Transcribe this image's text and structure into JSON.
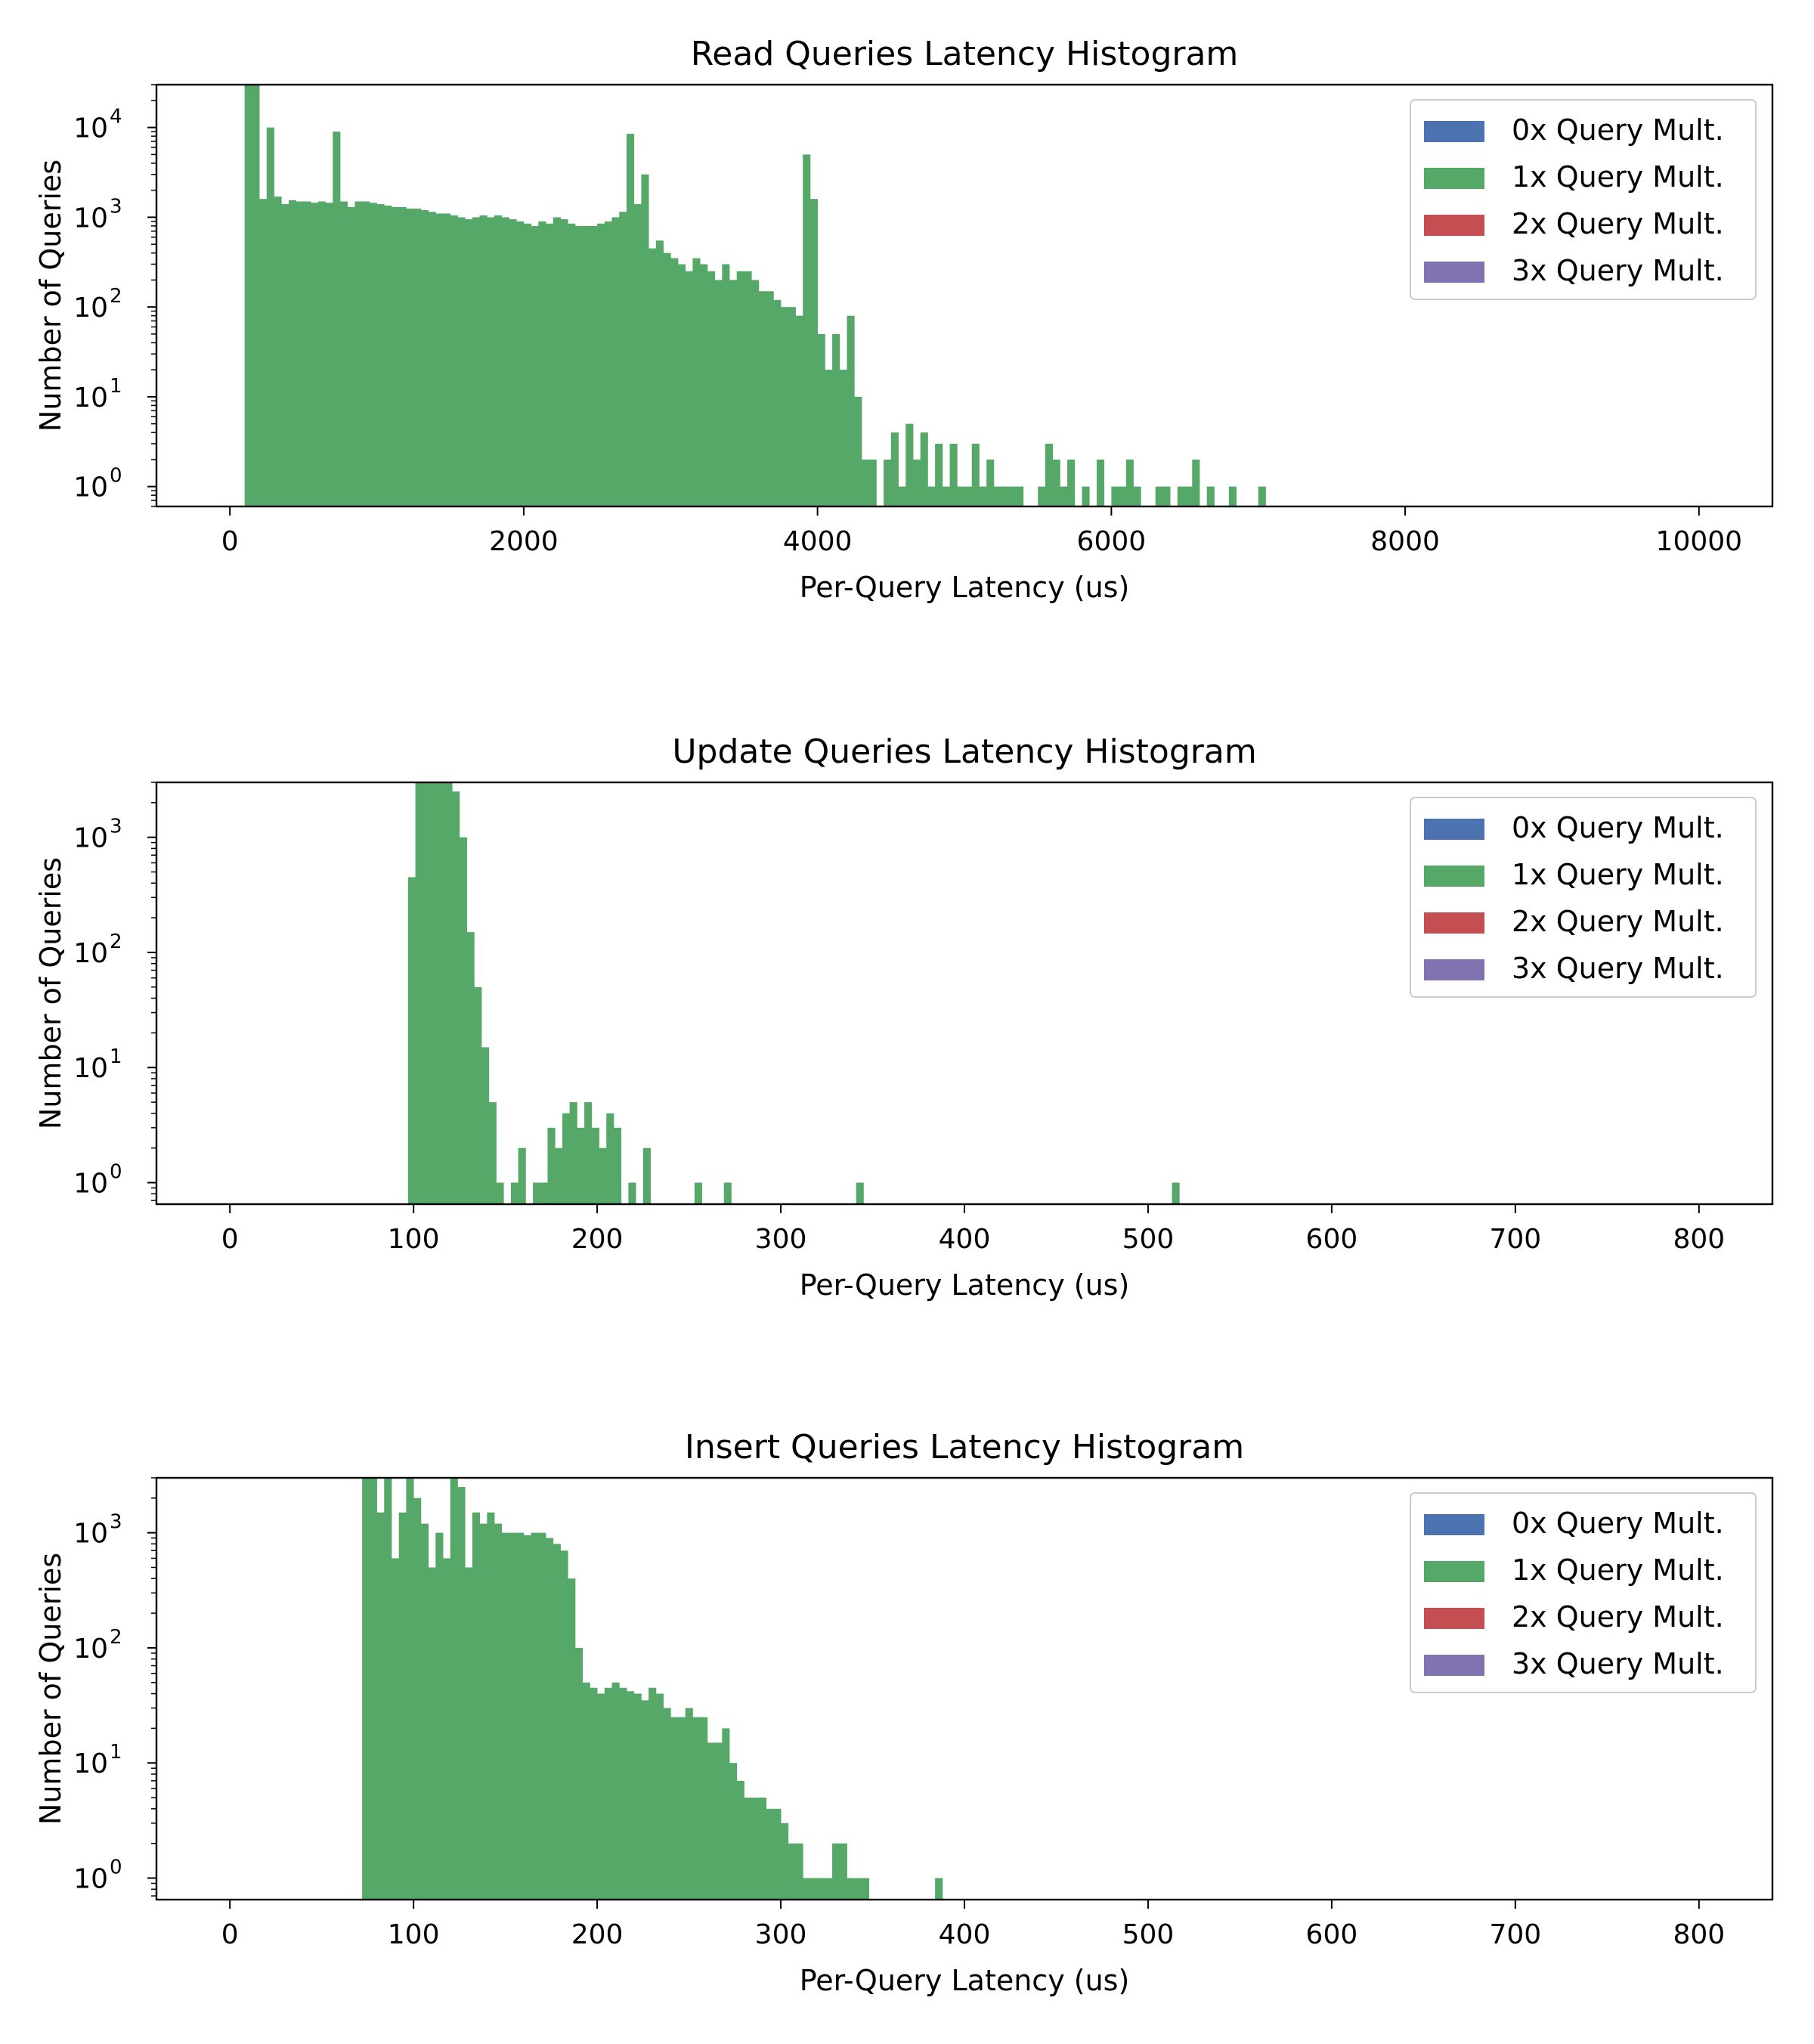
{
  "chart_data": [
    {
      "type": "bar",
      "title": "Read Queries Latency Histogram",
      "xlabel": "Per-Query Latency (us)",
      "ylabel": "Number of Queries",
      "yscale": "log",
      "xlim": [
        -500,
        10500
      ],
      "ylim": [
        0.6,
        30000
      ],
      "bin_width": 50,
      "x_ticks": [
        "0",
        "2000",
        "4000",
        "6000",
        "8000",
        "10000"
      ],
      "y_ticks": [
        {
          "base": "10",
          "exp": "0"
        },
        {
          "base": "10",
          "exp": "1"
        },
        {
          "base": "10",
          "exp": "2"
        },
        {
          "base": "10",
          "exp": "3"
        },
        {
          "base": "10",
          "exp": "4"
        }
      ],
      "legend": {
        "position": "top-right",
        "entries": [
          "0x Query Mult.",
          "1x Query Mult.",
          "2x Query Mult.",
          "3x Query Mult."
        ]
      },
      "series": [
        {
          "name": "0x Query Mult.",
          "color": "#4c72b0",
          "x": [],
          "values": []
        },
        {
          "name": "1x Query Mult.",
          "color": "#55a868",
          "x": [
            100,
            150,
            200,
            250,
            300,
            350,
            400,
            450,
            500,
            550,
            600,
            650,
            700,
            750,
            800,
            850,
            900,
            950,
            1000,
            1050,
            1100,
            1150,
            1200,
            1250,
            1300,
            1350,
            1400,
            1450,
            1500,
            1550,
            1600,
            1650,
            1700,
            1750,
            1800,
            1850,
            1900,
            1950,
            2000,
            2050,
            2100,
            2150,
            2200,
            2250,
            2300,
            2350,
            2400,
            2450,
            2500,
            2550,
            2600,
            2650,
            2700,
            2750,
            2800,
            2850,
            2900,
            2950,
            3000,
            3050,
            3100,
            3150,
            3200,
            3250,
            3300,
            3350,
            3400,
            3450,
            3500,
            3550,
            3600,
            3650,
            3700,
            3750,
            3800,
            3850,
            3900,
            3950,
            4000,
            4050,
            4100,
            4150,
            4200,
            4250,
            4300,
            4350,
            4450,
            4500,
            4550,
            4600,
            4650,
            4700,
            4750,
            4800,
            4850,
            4900,
            4950,
            5000,
            5050,
            5100,
            5150,
            5200,
            5250,
            5300,
            5350,
            5500,
            5550,
            5600,
            5650,
            5700,
            5800,
            5900,
            6000,
            6050,
            6100,
            6150,
            6300,
            6350,
            6450,
            6500,
            6550,
            6650,
            6800,
            7000
          ],
          "values": [
            30000,
            30000,
            1600,
            10000,
            1700,
            1400,
            1550,
            1500,
            1500,
            1450,
            1500,
            1450,
            9000,
            1500,
            1300,
            1500,
            1500,
            1450,
            1400,
            1350,
            1300,
            1300,
            1250,
            1250,
            1200,
            1150,
            1100,
            1100,
            1050,
            1000,
            950,
            1000,
            1050,
            1000,
            1050,
            1000,
            950,
            900,
            850,
            800,
            900,
            850,
            1000,
            950,
            850,
            800,
            800,
            800,
            850,
            900,
            1000,
            1150,
            8500,
            1400,
            3000,
            450,
            550,
            400,
            350,
            300,
            250,
            350,
            300,
            250,
            200,
            300,
            200,
            250,
            250,
            200,
            150,
            150,
            120,
            100,
            100,
            80,
            5000,
            1600,
            50,
            20,
            50,
            20,
            80,
            10,
            2,
            2,
            2,
            4,
            1,
            5,
            2,
            4,
            1,
            3,
            1,
            3,
            1,
            1,
            3,
            1,
            2,
            1,
            1,
            1,
            1,
            1,
            3,
            2,
            1,
            2,
            1,
            2,
            1,
            1,
            2,
            1,
            1,
            1,
            1,
            1,
            2,
            1,
            1,
            1
          ]
        },
        {
          "name": "2x Query Mult.",
          "color": "#c44e52",
          "x": [],
          "values": []
        },
        {
          "name": "3x Query Mult.",
          "color": "#8172b2",
          "x": [],
          "values": []
        }
      ]
    },
    {
      "type": "bar",
      "title": "Update Queries Latency Histogram",
      "xlabel": "Per-Query Latency (us)",
      "ylabel": "Number of Queries",
      "yscale": "log",
      "xlim": [
        -40,
        840
      ],
      "ylim": [
        0.65,
        3000
      ],
      "bin_width": 4,
      "x_ticks": [
        "0",
        "100",
        "200",
        "300",
        "400",
        "500",
        "600",
        "700",
        "800"
      ],
      "y_ticks": [
        {
          "base": "10",
          "exp": "0"
        },
        {
          "base": "10",
          "exp": "1"
        },
        {
          "base": "10",
          "exp": "2"
        },
        {
          "base": "10",
          "exp": "3"
        }
      ],
      "legend": {
        "position": "top-right",
        "entries": [
          "0x Query Mult.",
          "1x Query Mult.",
          "2x Query Mult.",
          "3x Query Mult."
        ]
      },
      "series": [
        {
          "name": "0x Query Mult.",
          "color": "#4c72b0",
          "x": [],
          "values": []
        },
        {
          "name": "1x Query Mult.",
          "color": "#55a868",
          "x": [
            97,
            101,
            105,
            109,
            113,
            117,
            121,
            125,
            129,
            133,
            137,
            141,
            145,
            153,
            157,
            165,
            169,
            173,
            177,
            181,
            185,
            189,
            193,
            197,
            201,
            205,
            209,
            217,
            225,
            253,
            269,
            341,
            513
          ],
          "values": [
            450,
            3000,
            3000,
            3000,
            3000,
            3000,
            2500,
            1000,
            150,
            50,
            15,
            5,
            1,
            1,
            2,
            1,
            1,
            3,
            2,
            4,
            5,
            3,
            5,
            3,
            2,
            4,
            3,
            1,
            2,
            1,
            1,
            1,
            1
          ]
        },
        {
          "name": "2x Query Mult.",
          "color": "#c44e52",
          "x": [],
          "values": []
        },
        {
          "name": "3x Query Mult.",
          "color": "#8172b2",
          "x": [],
          "values": []
        }
      ]
    },
    {
      "type": "bar",
      "title": "Insert Queries Latency Histogram",
      "xlabel": "Per-Query Latency (us)",
      "ylabel": "Number of Queries",
      "yscale": "log",
      "xlim": [
        -40,
        840
      ],
      "ylim": [
        0.65,
        3000
      ],
      "bin_width": 4,
      "x_ticks": [
        "0",
        "100",
        "200",
        "300",
        "400",
        "500",
        "600",
        "700",
        "800"
      ],
      "y_ticks": [
        {
          "base": "10",
          "exp": "0"
        },
        {
          "base": "10",
          "exp": "1"
        },
        {
          "base": "10",
          "exp": "2"
        },
        {
          "base": "10",
          "exp": "3"
        }
      ],
      "legend": {
        "position": "top-right",
        "entries": [
          "0x Query Mult.",
          "1x Query Mult.",
          "2x Query Mult.",
          "3x Query Mult."
        ]
      },
      "series": [
        {
          "name": "0x Query Mult.",
          "color": "#4c72b0",
          "x": [],
          "values": []
        },
        {
          "name": "1x Query Mult.",
          "color": "#55a868",
          "x": [
            72,
            76,
            80,
            84,
            88,
            92,
            96,
            100,
            104,
            108,
            112,
            116,
            120,
            124,
            128,
            132,
            136,
            140,
            144,
            148,
            152,
            156,
            160,
            164,
            168,
            172,
            176,
            180,
            184,
            188,
            192,
            196,
            200,
            204,
            208,
            212,
            216,
            220,
            224,
            228,
            232,
            236,
            240,
            244,
            248,
            252,
            256,
            260,
            264,
            268,
            272,
            276,
            280,
            284,
            288,
            292,
            296,
            300,
            304,
            308,
            312,
            316,
            320,
            324,
            328,
            332,
            336,
            340,
            344,
            384
          ],
          "values": [
            3000,
            3000,
            1500,
            3000,
            600,
            1500,
            3000,
            2000,
            1200,
            500,
            1000,
            600,
            3000,
            2500,
            500,
            1500,
            1200,
            1500,
            1200,
            1000,
            1000,
            1000,
            950,
            1000,
            1000,
            900,
            800,
            700,
            400,
            100,
            50,
            45,
            40,
            45,
            50,
            45,
            42,
            40,
            35,
            45,
            40,
            30,
            25,
            25,
            30,
            25,
            25,
            15,
            15,
            20,
            10,
            7,
            5,
            5,
            5,
            4,
            4,
            3,
            2,
            2,
            1,
            1,
            1,
            1,
            2,
            2,
            1,
            1,
            1,
            1
          ]
        },
        {
          "name": "2x Query Mult.",
          "color": "#c44e52",
          "x": [],
          "values": []
        },
        {
          "name": "3x Query Mult.",
          "color": "#8172b2",
          "x": [],
          "values": []
        }
      ]
    }
  ]
}
